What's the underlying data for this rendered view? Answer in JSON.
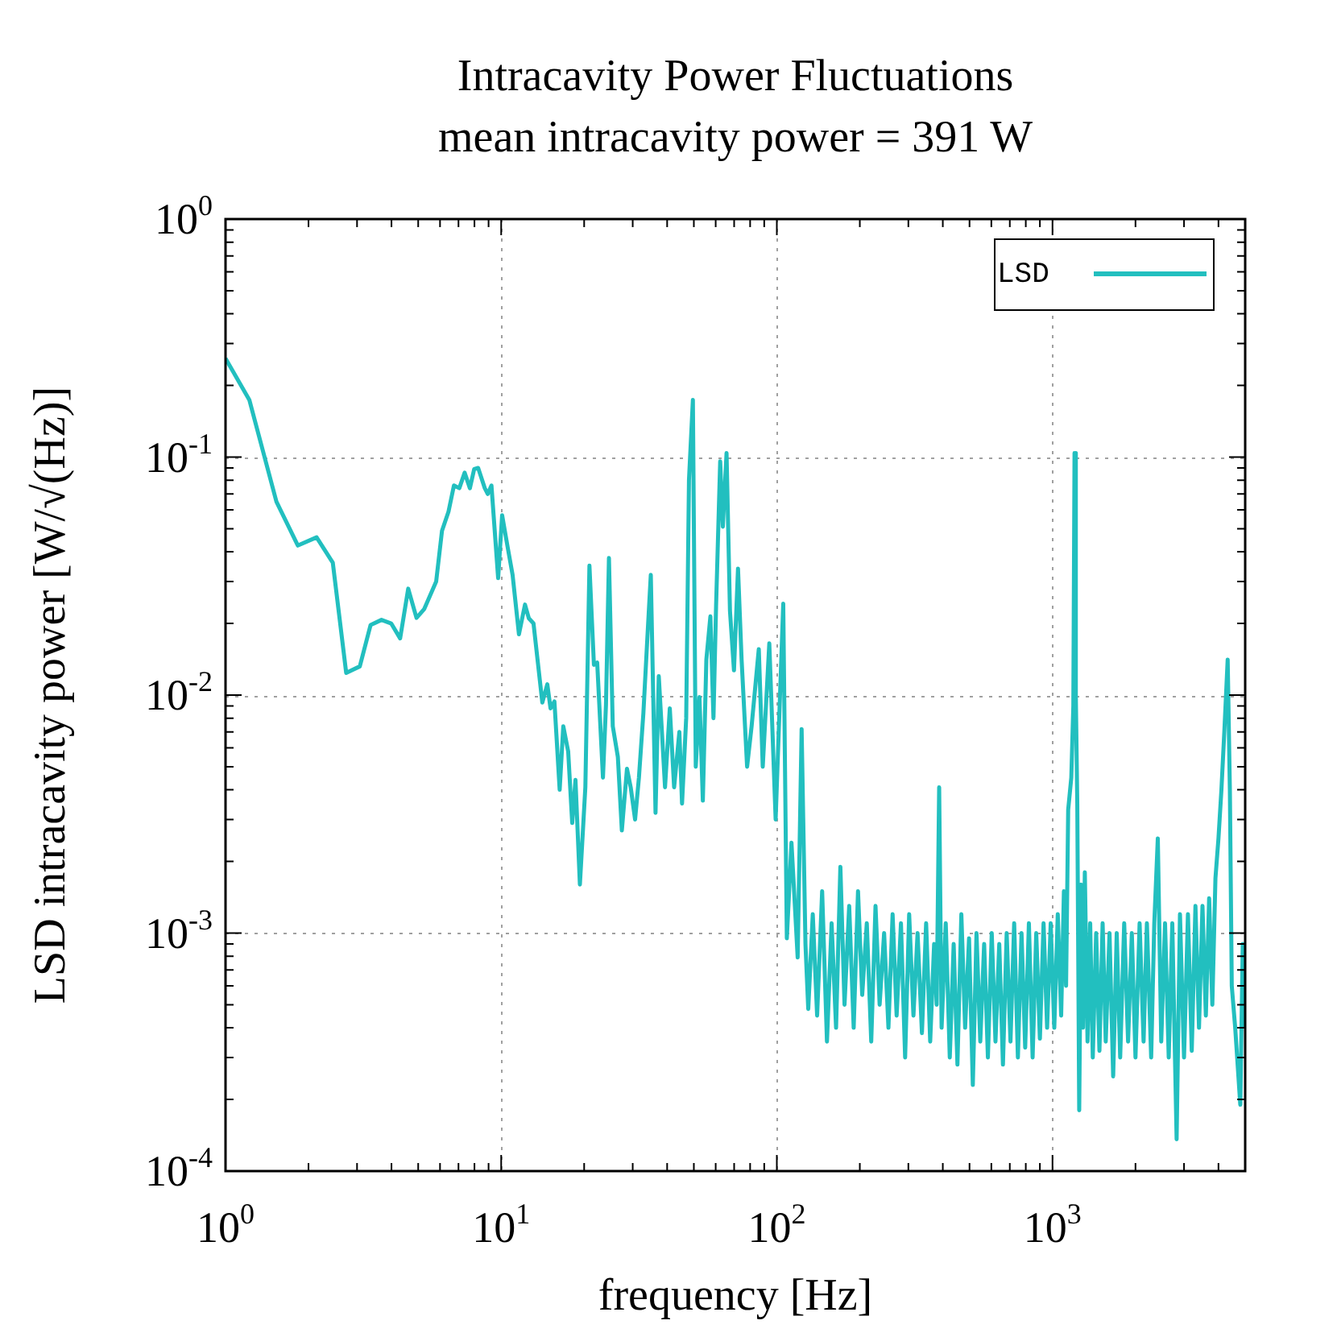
{
  "chart_data": {
    "type": "line",
    "title": "Intracavity Power Fluctuations",
    "subtitle": "mean intracavity power = 391 W",
    "xlabel": "frequency [Hz]",
    "ylabel": "LSD intracavity power [W/√(Hz)]",
    "log": "xy",
    "grid": true,
    "legend": "top right",
    "marker": "none",
    "line_style": "solid",
    "xlim": [
      1,
      5000
    ],
    "ylim": [
      0.0001,
      1
    ],
    "xticks": [
      {
        "value": 1,
        "label": "10$^{0}$"
      },
      {
        "value": 2,
        "label": null
      },
      {
        "value": 3,
        "label": null
      },
      {
        "value": 4,
        "label": null
      },
      {
        "value": 5,
        "label": null
      },
      {
        "value": 6,
        "label": null
      },
      {
        "value": 7,
        "label": null
      },
      {
        "value": 8,
        "label": null
      },
      {
        "value": 9,
        "label": null
      },
      {
        "value": 10,
        "label": "10$^{1}$"
      },
      {
        "value": 20,
        "label": null
      },
      {
        "value": 30,
        "label": null
      },
      {
        "value": 40,
        "label": null
      },
      {
        "value": 50,
        "label": null
      },
      {
        "value": 60,
        "label": null
      },
      {
        "value": 70,
        "label": null
      },
      {
        "value": 80,
        "label": null
      },
      {
        "value": 90,
        "label": null
      },
      {
        "value": 100,
        "label": "10$^{2}$"
      },
      {
        "value": 200,
        "label": null
      },
      {
        "value": 300,
        "label": null
      },
      {
        "value": 400,
        "label": null
      },
      {
        "value": 500,
        "label": null
      },
      {
        "value": 600,
        "label": null
      },
      {
        "value": 700,
        "label": null
      },
      {
        "value": 800,
        "label": null
      },
      {
        "value": 900,
        "label": null
      },
      {
        "value": 1000,
        "label": "10$^{3}$"
      },
      {
        "value": 2000,
        "label": null
      },
      {
        "value": 3000,
        "label": null
      },
      {
        "value": 4000,
        "label": null
      }
    ],
    "yticks": [
      {
        "value": 0.0001,
        "label": "10$^{-4}$"
      },
      {
        "value": 0.0002,
        "label": null
      },
      {
        "value": 0.0003,
        "label": null
      },
      {
        "value": 0.0004,
        "label": null
      },
      {
        "value": 0.0005,
        "label": null
      },
      {
        "value": 0.0006,
        "label": null
      },
      {
        "value": 0.0007,
        "label": null
      },
      {
        "value": 0.0008,
        "label": null
      },
      {
        "value": 0.0009,
        "label": null
      },
      {
        "value": 0.001,
        "label": "10$^{-3}$"
      },
      {
        "value": 0.002,
        "label": null
      },
      {
        "value": 0.003,
        "label": null
      },
      {
        "value": 0.004,
        "label": null
      },
      {
        "value": 0.005,
        "label": null
      },
      {
        "value": 0.006,
        "label": null
      },
      {
        "value": 0.007,
        "label": null
      },
      {
        "value": 0.008,
        "label": null
      },
      {
        "value": 0.009,
        "label": null
      },
      {
        "value": 0.01,
        "label": "10$^{-2}$"
      },
      {
        "value": 0.02,
        "label": null
      },
      {
        "value": 0.03,
        "label": null
      },
      {
        "value": 0.04,
        "label": null
      },
      {
        "value": 0.05,
        "label": null
      },
      {
        "value": 0.06,
        "label": null
      },
      {
        "value": 0.07,
        "label": null
      },
      {
        "value": 0.08,
        "label": null
      },
      {
        "value": 0.09,
        "label": null
      },
      {
        "value": 0.1,
        "label": "10$^{-1}$"
      },
      {
        "value": 0.2,
        "label": null
      },
      {
        "value": 0.3,
        "label": null
      },
      {
        "value": 0.4,
        "label": null
      },
      {
        "value": 0.5,
        "label": null
      },
      {
        "value": 0.6,
        "label": null
      },
      {
        "value": 0.7,
        "label": null
      },
      {
        "value": 0.8,
        "label": null
      },
      {
        "value": 0.9,
        "label": null
      },
      {
        "value": 1,
        "label": "10$^{0}$"
      }
    ],
    "series": [
      {
        "name": "LSD",
        "color": "#22bfbf",
        "x": [
          1.0,
          1.22,
          1.53,
          1.83,
          2.14,
          2.45,
          2.74,
          3.07,
          3.36,
          3.68,
          3.99,
          4.3,
          4.6,
          4.93,
          5.26,
          5.81,
          6.1,
          6.44,
          6.74,
          7.05,
          7.37,
          7.7,
          7.98,
          8.25,
          8.72,
          8.94,
          9.22,
          9.75,
          10.08,
          10.55,
          11.0,
          11.6,
          12.2,
          12.6,
          13.1,
          14.1,
          14.7,
          15.1,
          15.6,
          16.3,
          16.8,
          17.5,
          18.1,
          18.6,
          19.3,
          20.2,
          20.9,
          21.7,
          22.3,
          23.4,
          24.0,
          24.6,
          25.4,
          26.5,
          27.4,
          28.6,
          29.5,
          30.6,
          31.6,
          32.8,
          33.9,
          34.9,
          36.3,
          37.3,
          39.3,
          40.9,
          42.4,
          44.3,
          45.3,
          46.9,
          48.0,
          49.6,
          50.8,
          52.4,
          53.9,
          55.5,
          57.4,
          58.9,
          60.2,
          62.3,
          63.7,
          65.7,
          67.6,
          69.9,
          72.3,
          74.5,
          78.0,
          81.0,
          86.0,
          88.9,
          93.9,
          99.0,
          105.5,
          108.7,
          113,
          119,
          123,
          127,
          130,
          135,
          140,
          146,
          152,
          158,
          164,
          170,
          176,
          183,
          190,
          197,
          204,
          212,
          220,
          228,
          236,
          245,
          254,
          263,
          272,
          282,
          292,
          302,
          313,
          324,
          336,
          348,
          360,
          372,
          380,
          388,
          396,
          410,
          424,
          438,
          452,
          467,
          482,
          498,
          514,
          530,
          547,
          565,
          583,
          602,
          621,
          641,
          661,
          682,
          704,
          726,
          749,
          772,
          796,
          821,
          847,
          873,
          900,
          928,
          956,
          985,
          1015,
          1045,
          1075,
          1100,
          1120,
          1140,
          1170,
          1190,
          1202,
          1215,
          1230,
          1250,
          1270,
          1290,
          1310,
          1340,
          1370,
          1400,
          1440,
          1480,
          1520,
          1560,
          1610,
          1660,
          1710,
          1760,
          1820,
          1880,
          1940,
          2000,
          2070,
          2140,
          2200,
          2280,
          2340,
          2410,
          2480,
          2560,
          2640,
          2720,
          2820,
          2900,
          3000,
          3100,
          3200,
          3300,
          3400,
          3500,
          3600,
          3700,
          3800,
          3900,
          4000,
          4100,
          4200,
          4320,
          4400,
          4470,
          4600,
          4800,
          4900,
          5000
        ],
        "values": [
          0.26,
          0.174,
          0.065,
          0.0425,
          0.046,
          0.036,
          0.0124,
          0.0132,
          0.0197,
          0.0207,
          0.02,
          0.0173,
          0.028,
          0.0211,
          0.023,
          0.03,
          0.049,
          0.059,
          0.076,
          0.074,
          0.086,
          0.074,
          0.089,
          0.09,
          0.074,
          0.07,
          0.076,
          0.031,
          0.057,
          0.042,
          0.032,
          0.018,
          0.024,
          0.021,
          0.02,
          0.0093,
          0.0111,
          0.0088,
          0.0094,
          0.004,
          0.0074,
          0.0058,
          0.0029,
          0.0044,
          0.0016,
          0.0041,
          0.035,
          0.0134,
          0.0137,
          0.0045,
          0.0091,
          0.0377,
          0.0074,
          0.0055,
          0.0027,
          0.0049,
          0.0041,
          0.003,
          0.0045,
          0.0084,
          0.0173,
          0.032,
          0.0032,
          0.012,
          0.0041,
          0.0088,
          0.0041,
          0.007,
          0.0035,
          0.008,
          0.08,
          0.174,
          0.005,
          0.0098,
          0.0036,
          0.0141,
          0.0214,
          0.008,
          0.0237,
          0.096,
          0.051,
          0.104,
          0.0226,
          0.0127,
          0.034,
          0.0141,
          0.005,
          0.0074,
          0.0156,
          0.005,
          0.0165,
          0.003,
          0.0242,
          0.00095,
          0.0024,
          0.00079,
          0.0072,
          0.0009,
          0.00048,
          0.0012,
          0.00045,
          0.0015,
          0.00035,
          0.0011,
          0.0004,
          0.0019,
          0.0005,
          0.0013,
          0.0004,
          0.0015,
          0.00055,
          0.0011,
          0.00035,
          0.0013,
          0.0005,
          0.001,
          0.0004,
          0.0012,
          0.00045,
          0.0011,
          0.0003,
          0.0012,
          0.00045,
          0.001,
          0.00038,
          0.0011,
          0.00035,
          0.0009,
          0.0005,
          0.0041,
          0.0004,
          0.0011,
          0.0003,
          0.0009,
          0.00028,
          0.0012,
          0.0004,
          0.00095,
          0.00023,
          0.001,
          0.00035,
          0.0009,
          0.0003,
          0.001,
          0.00035,
          0.0009,
          0.00028,
          0.001,
          0.00035,
          0.0011,
          0.0003,
          0.001,
          0.00033,
          0.0011,
          0.0003,
          0.001,
          0.00036,
          0.0011,
          0.0004,
          0.0011,
          0.0004,
          0.0012,
          0.00045,
          0.0015,
          0.0006,
          0.0033,
          0.0045,
          0.009,
          0.104,
          0.01,
          0.0035,
          0.00018,
          0.0016,
          0.0004,
          0.0018,
          0.00035,
          0.0011,
          0.0003,
          0.001,
          0.00032,
          0.0011,
          0.00035,
          0.001,
          0.00025,
          0.001,
          0.0003,
          0.0011,
          0.00035,
          0.001,
          0.0003,
          0.0011,
          0.00035,
          0.0011,
          0.0003,
          0.0011,
          0.0025,
          0.00035,
          0.0011,
          0.0003,
          0.0011,
          0.000136,
          0.0012,
          0.0003,
          0.0012,
          0.00032,
          0.0013,
          0.0004,
          0.0013,
          0.00045,
          0.0014,
          0.0005,
          0.0017,
          0.0025,
          0.004,
          0.007,
          0.0141,
          0.004,
          0.0006,
          0.0004,
          0.00019,
          0.0009,
          0.0004
        ]
      }
    ]
  }
}
